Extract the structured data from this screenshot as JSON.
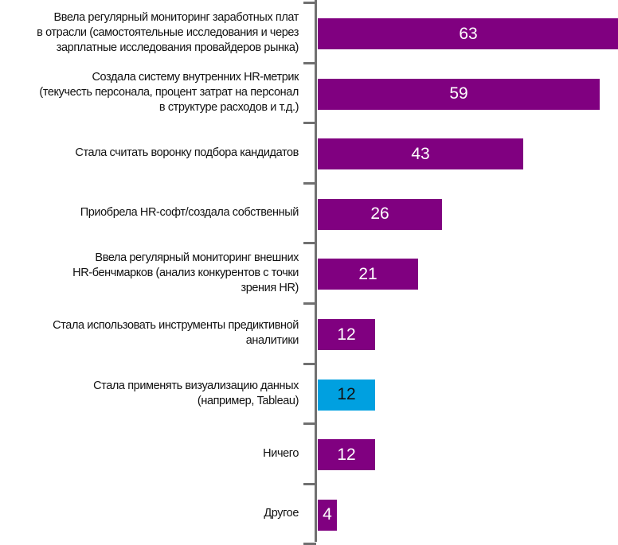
{
  "chart_data": {
    "type": "bar",
    "orientation": "horizontal",
    "categories": [
      "Ввела регулярный мониторинг заработных плат в отрасли (самостоятельные исследования и через зарплатные исследования провайдеров рынка)",
      "Создала систему внутренних HR-метрик (текучесть персонала, процент затрат на персонал в структуре расходов и т.д.)",
      "Стала считать воронку подбора кандидатов",
      "Приобрела HR-софт/создала собственный",
      "Ввела регулярный мониторинг внешних HR-бенчмарков (анализ конкурентов с точки зрения HR)",
      "Стала использовать инструменты предиктивной аналитики",
      "Стала применять визуализацию данных (например, Tableau)",
      "Ничего",
      "Другое"
    ],
    "label_lines": [
      [
        "Ввела регулярный мониторинг заработных плат",
        "в отрасли (самостоятельные исследования и через",
        "зарплатные исследования провайдеров рынка)"
      ],
      [
        "Создала систему внутренних HR-метрик",
        "(текучесть персонала, процент затрат на персонал",
        "в структуре расходов и т.д.)"
      ],
      [
        "Стала считать воронку подбора кандидатов"
      ],
      [
        "Приобрела HR-софт/создала собственный"
      ],
      [
        "Ввела регулярный мониторинг внешних",
        "HR-бенчмарков (анализ конкурентов с точки",
        "зрения HR)"
      ],
      [
        "Стала использовать инструменты предиктивной",
        "аналитики"
      ],
      [
        "Стала применять визуализацию данных",
        "(например, Tableau)"
      ],
      [
        "Ничего"
      ],
      [
        "Другое"
      ]
    ],
    "values": [
      63,
      59,
      43,
      26,
      21,
      12,
      12,
      12,
      4
    ],
    "data_labels": [
      "63",
      "59",
      "43",
      "26",
      "21",
      "12",
      "12",
      "12",
      "4"
    ],
    "highlight_index": 6,
    "colors": {
      "bar": "#800080",
      "highlight": "#00A0E0",
      "axis": "#707070",
      "label_on_bar": "#FFFFFF",
      "label_on_highlight": "#111111"
    },
    "xlim": [
      0,
      63
    ],
    "grid": false,
    "legend": "none"
  }
}
